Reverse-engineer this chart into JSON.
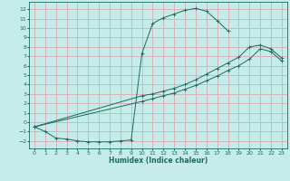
{
  "xlabel": "Humidex (Indice chaleur)",
  "bg_color": "#c5ece8",
  "grid_color": "#dba8b2",
  "line_color": "#1a6b60",
  "xlim": [
    -0.5,
    23.5
  ],
  "ylim": [
    -2.8,
    12.8
  ],
  "xticks": [
    0,
    1,
    2,
    3,
    4,
    5,
    6,
    7,
    8,
    9,
    10,
    11,
    12,
    13,
    14,
    15,
    16,
    17,
    18,
    19,
    20,
    21,
    22,
    23
  ],
  "yticks": [
    -2,
    -1,
    0,
    1,
    2,
    3,
    4,
    5,
    6,
    7,
    8,
    9,
    10,
    11,
    12
  ],
  "curve1_x": [
    0,
    1,
    2,
    3,
    4,
    5,
    6,
    7,
    8,
    9,
    10,
    11,
    12,
    13,
    14,
    15,
    16,
    17,
    18
  ],
  "curve1_y": [
    -0.5,
    -1.0,
    -1.7,
    -1.8,
    -2.0,
    -2.1,
    -2.1,
    -2.1,
    -2.0,
    -1.9,
    7.3,
    10.5,
    11.1,
    11.5,
    11.9,
    12.1,
    11.8,
    10.8,
    9.7
  ],
  "curve2_x": [
    0,
    10,
    11,
    12,
    13,
    14,
    15,
    16,
    17,
    18,
    19,
    20,
    21,
    22,
    23
  ],
  "curve2_y": [
    -0.5,
    2.8,
    3.0,
    3.3,
    3.6,
    4.0,
    4.5,
    5.1,
    5.7,
    6.3,
    6.9,
    8.0,
    8.2,
    7.8,
    6.8
  ],
  "curve3_x": [
    0,
    10,
    11,
    12,
    13,
    14,
    15,
    16,
    17,
    18,
    19,
    20,
    21,
    22,
    23
  ],
  "curve3_y": [
    -0.5,
    2.2,
    2.5,
    2.8,
    3.1,
    3.5,
    3.9,
    4.4,
    4.9,
    5.5,
    6.0,
    6.7,
    7.8,
    7.5,
    6.5
  ]
}
